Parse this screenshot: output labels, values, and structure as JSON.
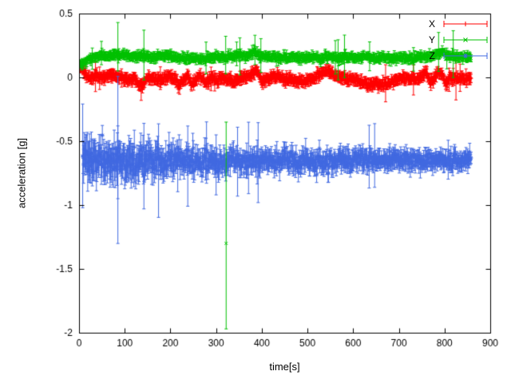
{
  "chart_data": {
    "type": "scatter",
    "title": "",
    "xlabel": "time[s]",
    "ylabel": "acceleration [g]",
    "xlim": [
      0,
      900
    ],
    "ylim": [
      -2,
      0.5
    ],
    "xticks": [
      0,
      100,
      200,
      300,
      400,
      500,
      600,
      700,
      800,
      900
    ],
    "xtick_labels": [
      "0",
      "100",
      "200",
      "300",
      "400",
      "500",
      "600",
      "700",
      "800",
      "900"
    ],
    "yticks": [
      0.5,
      0,
      -0.5,
      -1,
      -1.5,
      -2
    ],
    "ytick_labels": [
      "0.5",
      "0",
      "-0.5",
      "-1",
      "-1.5",
      "-2"
    ],
    "grid": false,
    "legend": {
      "position": "top-right",
      "style": "errorbar-samples"
    },
    "series": [
      {
        "name": "X",
        "color": "#ff0000",
        "marker": "plus",
        "seed": 11,
        "t_start": 2,
        "t_end": 858,
        "step": 1,
        "trend": [
          [
            0,
            0.1
          ],
          [
            6,
            0.08
          ],
          [
            12,
            0.03
          ],
          [
            20,
            0.0
          ],
          [
            35,
            0.01
          ],
          [
            50,
            0.0
          ],
          [
            65,
            0.02
          ],
          [
            80,
            0.01
          ],
          [
            95,
            -0.01
          ],
          [
            110,
            -0.02
          ],
          [
            122,
            -0.01
          ],
          [
            132,
            -0.07
          ],
          [
            140,
            -0.05
          ],
          [
            150,
            0.0
          ],
          [
            165,
            -0.01
          ],
          [
            180,
            -0.02
          ],
          [
            195,
            0.01
          ],
          [
            208,
            -0.01
          ],
          [
            220,
            -0.06
          ],
          [
            228,
            -0.03
          ],
          [
            238,
            0.02
          ],
          [
            247,
            -0.05
          ],
          [
            256,
            -0.02
          ],
          [
            266,
            0.01
          ],
          [
            277,
            -0.04
          ],
          [
            290,
            -0.01
          ],
          [
            303,
            -0.02
          ],
          [
            315,
            0.0
          ],
          [
            328,
            -0.02
          ],
          [
            340,
            -0.04
          ],
          [
            352,
            -0.01
          ],
          [
            365,
            0.0
          ],
          [
            377,
            0.02
          ],
          [
            388,
            0.06
          ],
          [
            394,
            0.03
          ],
          [
            400,
            -0.03
          ],
          [
            410,
            -0.01
          ],
          [
            422,
            0.0
          ],
          [
            436,
            0.01
          ],
          [
            450,
            -0.02
          ],
          [
            465,
            -0.01
          ],
          [
            480,
            -0.02
          ],
          [
            495,
            -0.03
          ],
          [
            510,
            -0.01
          ],
          [
            525,
            0.02
          ],
          [
            538,
            0.05
          ],
          [
            550,
            0.04
          ],
          [
            562,
            0.01
          ],
          [
            575,
            0.0
          ],
          [
            590,
            -0.01
          ],
          [
            605,
            -0.02
          ],
          [
            620,
            -0.04
          ],
          [
            635,
            -0.06
          ],
          [
            650,
            -0.05
          ],
          [
            665,
            -0.06
          ],
          [
            680,
            -0.04
          ],
          [
            695,
            -0.02
          ],
          [
            708,
            0.0
          ],
          [
            722,
            -0.01
          ],
          [
            736,
            -0.02
          ],
          [
            750,
            0.01
          ],
          [
            760,
            0.04
          ],
          [
            768,
            -0.04
          ],
          [
            776,
            -0.01
          ],
          [
            786,
            0.03
          ],
          [
            794,
            0.02
          ],
          [
            802,
            -0.05
          ],
          [
            812,
            -0.01
          ],
          [
            824,
            0.0
          ],
          [
            840,
            -0.01
          ],
          [
            858,
            -0.01
          ]
        ],
        "noise": [
          [
            0,
            0.012
          ],
          [
            858,
            0.012
          ]
        ],
        "err": [
          [
            0,
            0.035
          ],
          [
            858,
            0.035
          ]
        ],
        "err_spike_prob": 0.006,
        "err_spike_scale": 2
      },
      {
        "name": "Y",
        "color": "#00c000",
        "marker": "cross",
        "seed": 22,
        "t_start": 2,
        "t_end": 858,
        "step": 1,
        "trend": [
          [
            0,
            0.1
          ],
          [
            8,
            0.1
          ],
          [
            16,
            0.13
          ],
          [
            28,
            0.16
          ],
          [
            45,
            0.17
          ],
          [
            65,
            0.17
          ],
          [
            85,
            0.18
          ],
          [
            105,
            0.17
          ],
          [
            125,
            0.16
          ],
          [
            145,
            0.17
          ],
          [
            165,
            0.16
          ],
          [
            185,
            0.17
          ],
          [
            205,
            0.16
          ],
          [
            225,
            0.15
          ],
          [
            245,
            0.16
          ],
          [
            262,
            0.14
          ],
          [
            280,
            0.15
          ],
          [
            300,
            0.16
          ],
          [
            320,
            0.15
          ],
          [
            338,
            0.17
          ],
          [
            352,
            0.18
          ],
          [
            368,
            0.16
          ],
          [
            382,
            0.21
          ],
          [
            392,
            0.18
          ],
          [
            405,
            0.16
          ],
          [
            425,
            0.16
          ],
          [
            445,
            0.15
          ],
          [
            465,
            0.16
          ],
          [
            485,
            0.15
          ],
          [
            505,
            0.16
          ],
          [
            525,
            0.15
          ],
          [
            545,
            0.16
          ],
          [
            565,
            0.15
          ],
          [
            585,
            0.16
          ],
          [
            605,
            0.15
          ],
          [
            625,
            0.16
          ],
          [
            645,
            0.15
          ],
          [
            665,
            0.16
          ],
          [
            685,
            0.15
          ],
          [
            705,
            0.16
          ],
          [
            725,
            0.15
          ],
          [
            742,
            0.16
          ],
          [
            756,
            0.17
          ],
          [
            770,
            0.16
          ],
          [
            784,
            0.19
          ],
          [
            794,
            0.2
          ],
          [
            806,
            0.17
          ],
          [
            820,
            0.16
          ],
          [
            840,
            0.16
          ],
          [
            858,
            0.16
          ]
        ],
        "noise": [
          [
            0,
            0.012
          ],
          [
            858,
            0.012
          ]
        ],
        "err": [
          [
            0,
            0.028
          ],
          [
            858,
            0.028
          ]
        ],
        "err_spike_prob": 0.01,
        "err_spike_scale": 4
      },
      {
        "name": "Z",
        "color": "#4169e1",
        "marker": "star",
        "seed": 33,
        "t_start": 8,
        "t_end": 858,
        "step": 1,
        "trend": [
          [
            8,
            -0.61
          ],
          [
            14,
            -0.64
          ],
          [
            30,
            -0.66
          ],
          [
            60,
            -0.65
          ],
          [
            90,
            -0.64
          ],
          [
            120,
            -0.66
          ],
          [
            150,
            -0.65
          ],
          [
            180,
            -0.66
          ],
          [
            210,
            -0.65
          ],
          [
            240,
            -0.66
          ],
          [
            270,
            -0.65
          ],
          [
            300,
            -0.66
          ],
          [
            330,
            -0.65
          ],
          [
            360,
            -0.66
          ],
          [
            390,
            -0.65
          ],
          [
            420,
            -0.66
          ],
          [
            450,
            -0.65
          ],
          [
            480,
            -0.66
          ],
          [
            510,
            -0.65
          ],
          [
            540,
            -0.66
          ],
          [
            570,
            -0.65
          ],
          [
            600,
            -0.65
          ],
          [
            630,
            -0.64
          ],
          [
            660,
            -0.65
          ],
          [
            690,
            -0.64
          ],
          [
            720,
            -0.65
          ],
          [
            750,
            -0.65
          ],
          [
            780,
            -0.64
          ],
          [
            810,
            -0.65
          ],
          [
            840,
            -0.65
          ],
          [
            858,
            -0.65
          ]
        ],
        "noise": [
          [
            0,
            0.055
          ],
          [
            150,
            0.045
          ],
          [
            300,
            0.04
          ],
          [
            600,
            0.03
          ],
          [
            858,
            0.028
          ]
        ],
        "err": [
          [
            0,
            0.12
          ],
          [
            150,
            0.1
          ],
          [
            250,
            0.07
          ],
          [
            600,
            0.06
          ],
          [
            858,
            0.05
          ]
        ],
        "err_spike_prob": 0.02,
        "err_spike_scale": 2.5
      }
    ],
    "outliers": [
      {
        "series": "Y",
        "t": 322,
        "y": -1.3,
        "lo": -1.97,
        "hi": -0.35
      },
      {
        "series": "Y",
        "t": 85,
        "y": 0.21,
        "lo": 0.05,
        "hi": 0.43
      },
      {
        "series": "Y",
        "t": 142,
        "y": 0.18,
        "lo": -0.02,
        "hi": 0.37
      },
      {
        "series": "Y",
        "t": 352,
        "y": 0.17,
        "lo": 0.02,
        "hi": 0.31
      },
      {
        "series": "Y",
        "t": 385,
        "y": 0.22,
        "lo": 0.1,
        "hi": 0.33
      },
      {
        "series": "Z",
        "t": 85,
        "y": -0.62,
        "lo": -0.95,
        "hi": -0.38
      },
      {
        "series": "Z",
        "t": 142,
        "y": -0.68,
        "lo": -1.03,
        "hi": -0.36
      },
      {
        "series": "Z",
        "t": 300,
        "y": -0.67,
        "lo": -0.92,
        "hi": -0.45
      },
      {
        "series": "Z",
        "t": 347,
        "y": -0.66,
        "lo": -0.93,
        "hi": -0.39
      },
      {
        "series": "X",
        "t": 136,
        "y": -0.09,
        "lo": -0.18,
        "hi": -0.01
      }
    ]
  }
}
